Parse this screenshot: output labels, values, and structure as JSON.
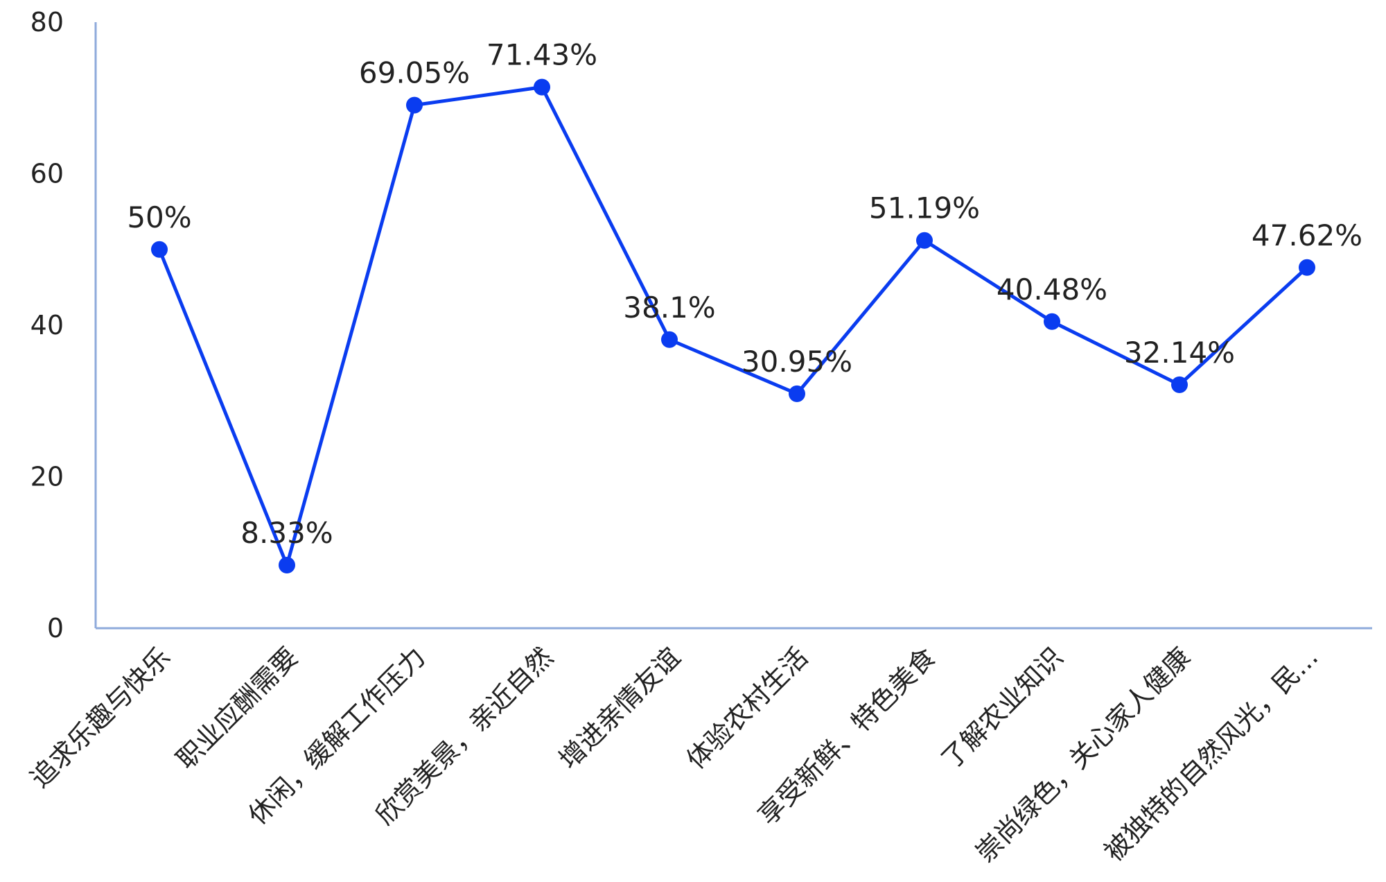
{
  "chart_data": {
    "type": "line",
    "title": "",
    "xlabel": "",
    "ylabel": "",
    "ylim": [
      0,
      80
    ],
    "yticks": [
      "0",
      "20",
      "40",
      "60",
      "80"
    ],
    "grid": false,
    "legend": "none",
    "categories": [
      "追求乐趣与快乐",
      "职业应酬需要",
      "休闲，缓解工作压力",
      "欣赏美景，亲近自然",
      "增进亲情友谊",
      "体验农村生活",
      "享受新鲜、特色美食",
      "了解农业知识",
      "崇尚绿色，关心家人健康",
      "被独特的自然风光，民..."
    ],
    "series": [
      {
        "values": [
          50,
          8.33,
          69.05,
          71.43,
          38.1,
          30.95,
          51.19,
          40.48,
          32.14,
          47.62
        ],
        "data_labels": [
          "50%",
          "8.33%",
          "69.05%",
          "71.43%",
          "38.1%",
          "30.95%",
          "51.19%",
          "40.48%",
          "32.14%",
          "47.62%"
        ]
      }
    ],
    "colors": {
      "line": "#0a3cf0",
      "axis": "#8eaadb",
      "text": "#222222"
    }
  }
}
